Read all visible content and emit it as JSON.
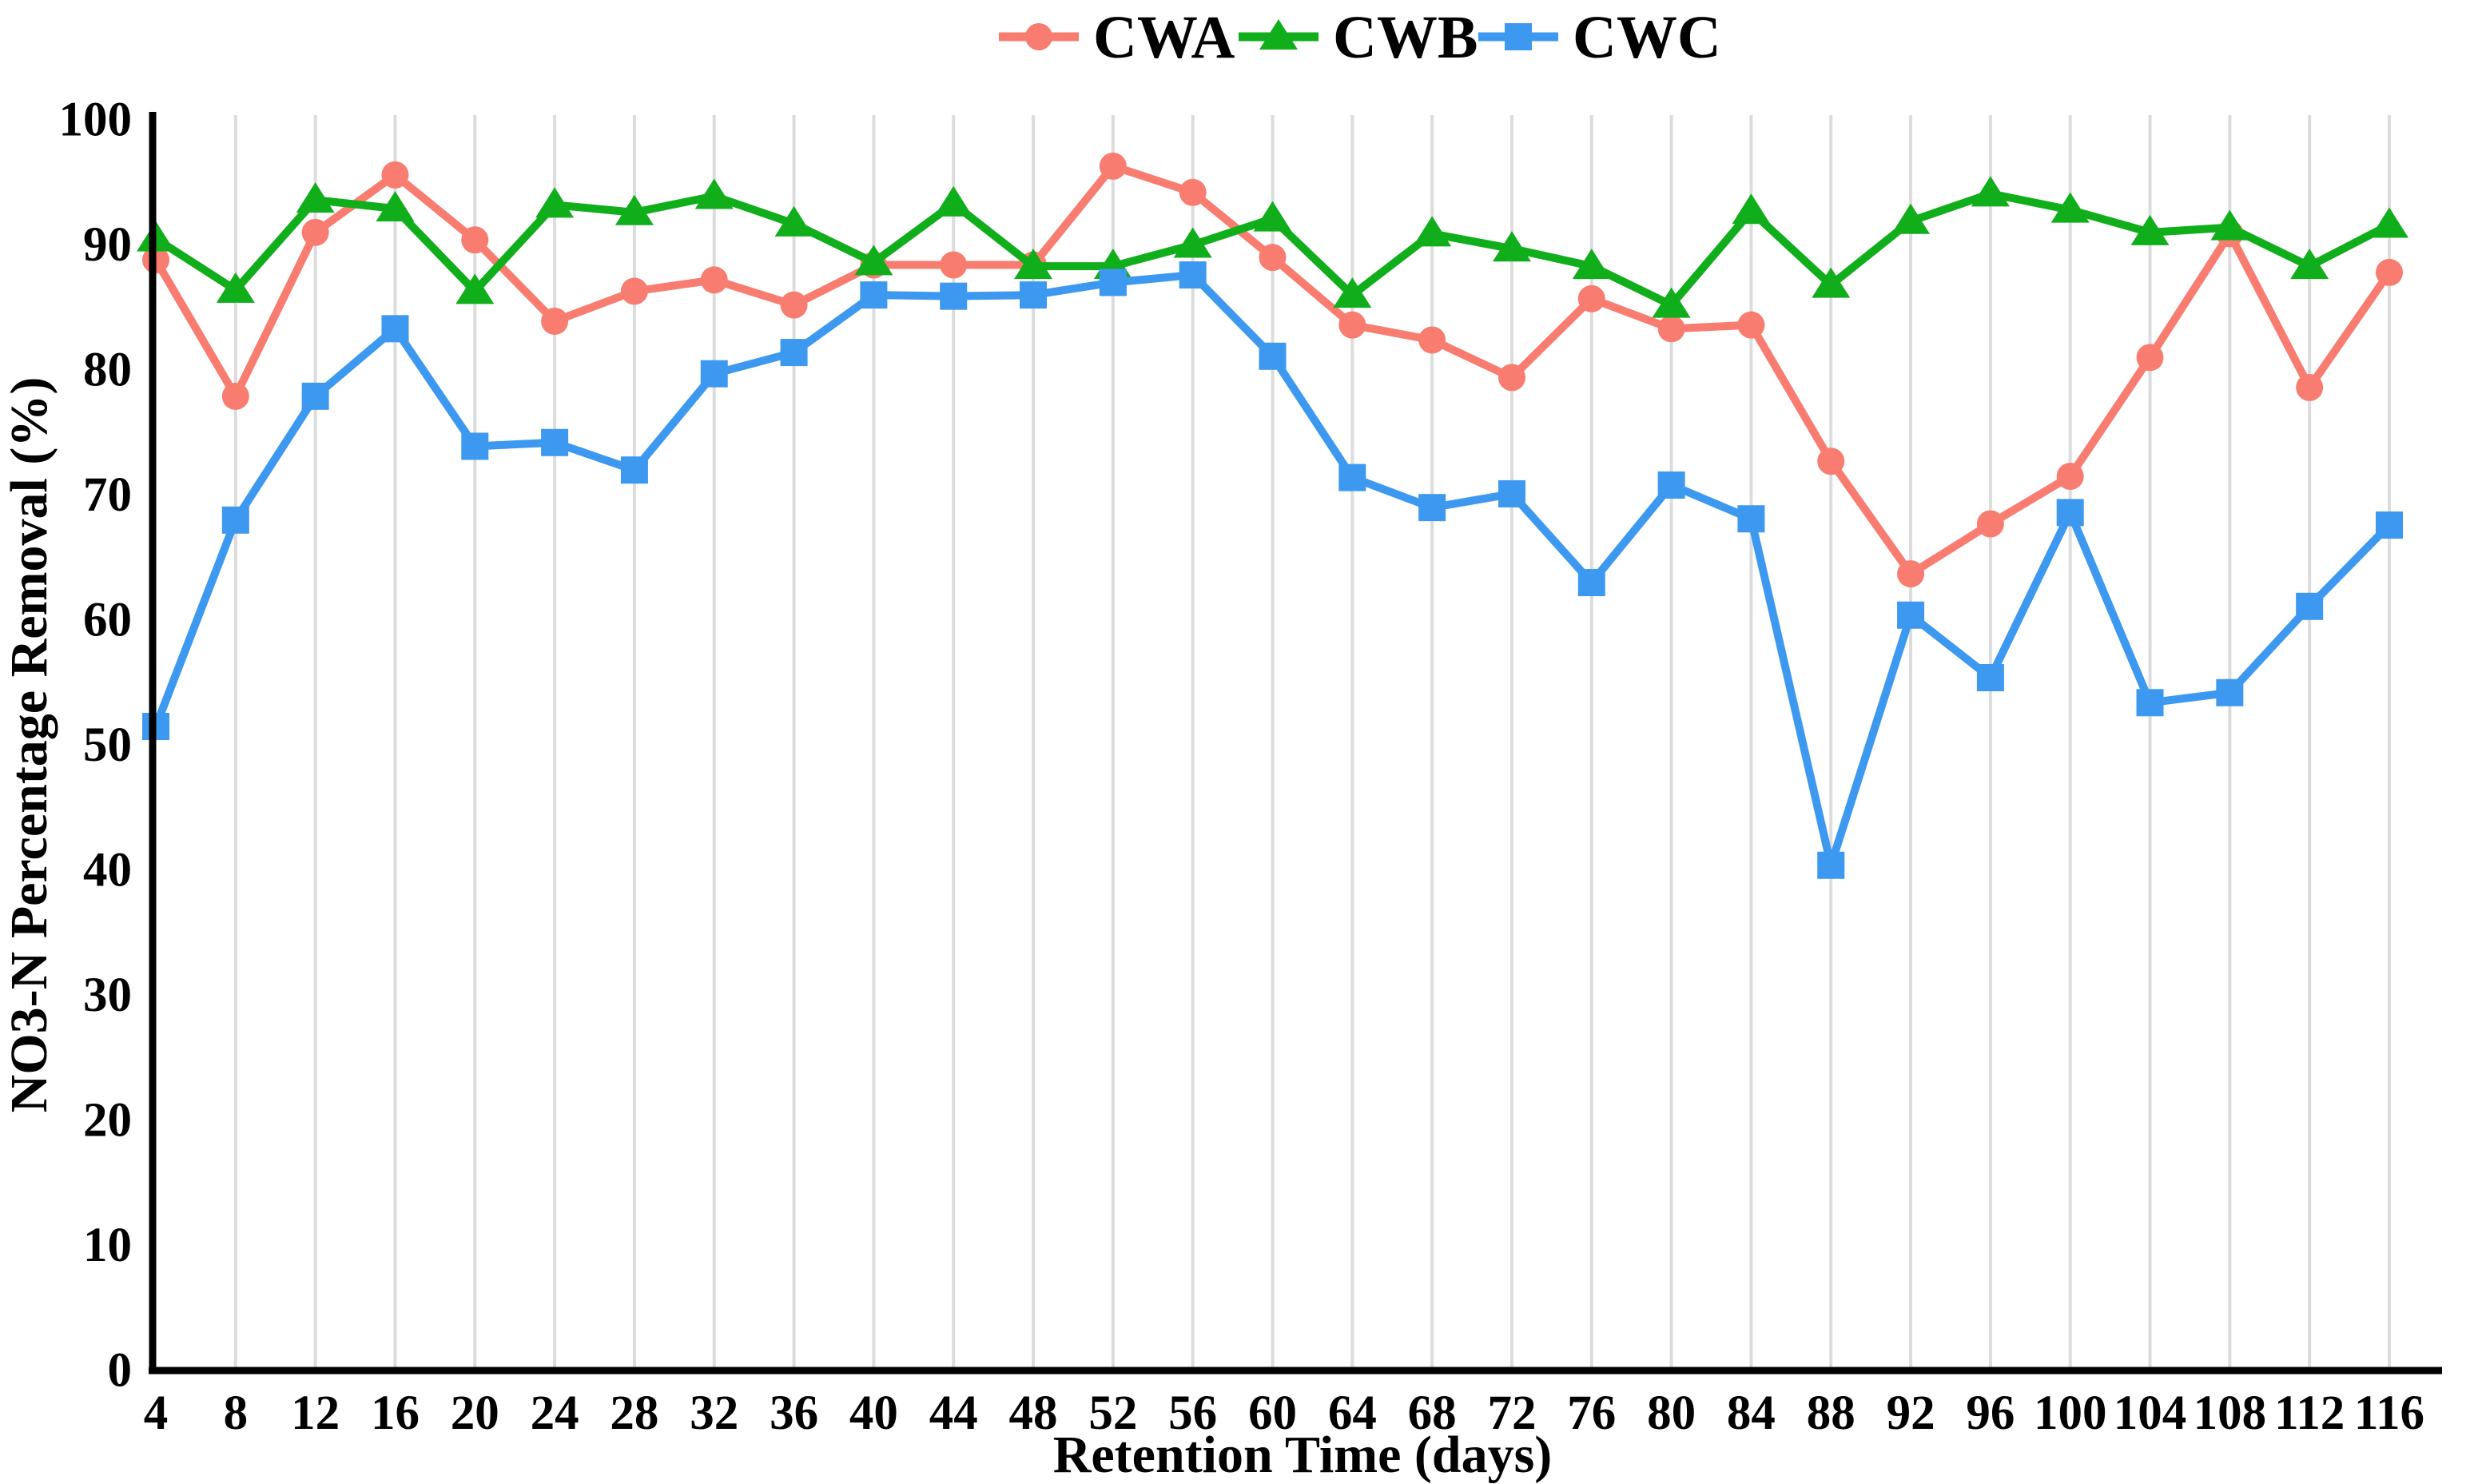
{
  "chart_data": {
    "type": "line",
    "title": "",
    "xlabel": "Retention Time (days)",
    "ylabel": "NO3-N Percentage Removal (%)",
    "x": [
      4,
      8,
      12,
      16,
      20,
      24,
      28,
      32,
      36,
      40,
      44,
      48,
      52,
      56,
      60,
      64,
      68,
      72,
      76,
      80,
      84,
      88,
      92,
      96,
      100,
      104,
      108,
      112,
      116
    ],
    "x_tick_labels": [
      "4",
      "8",
      "12",
      "16",
      "20",
      "24",
      "28",
      "32",
      "36",
      "40",
      "44",
      "48",
      "52",
      "56",
      "60",
      "64",
      "68",
      "72",
      "76",
      "80",
      "84",
      "88",
      "92",
      "96",
      "100",
      "104",
      "108",
      "112",
      "116"
    ],
    "y_ticks": [
      0,
      10,
      20,
      30,
      40,
      50,
      60,
      70,
      80,
      90,
      100
    ],
    "y_tick_labels": [
      "0",
      "10",
      "20",
      "30",
      "40",
      "50",
      "60",
      "70",
      "80",
      "90",
      "100"
    ],
    "xlim": [
      4,
      116
    ],
    "ylim": [
      0,
      100
    ],
    "grid": "vertical-only",
    "gridline_color": "#DCDCDC",
    "axis_color": "#000000",
    "background_color": "#FFFFFF",
    "legend_position": "top-center",
    "series": [
      {
        "name": "CWA",
        "marker": "circle",
        "color": "#F97C70",
        "values": [
          88.8,
          77.9,
          91.0,
          95.6,
          90.4,
          83.9,
          86.3,
          87.2,
          85.2,
          88.4,
          88.4,
          88.4,
          96.3,
          94.2,
          89.0,
          83.6,
          82.4,
          79.4,
          85.7,
          83.3,
          83.6,
          72.7,
          63.7,
          67.7,
          71.5,
          81.0,
          90.9,
          78.6,
          87.8
        ]
      },
      {
        "name": "CWB",
        "marker": "triangle",
        "color": "#10AE1B",
        "values": [
          90.5,
          86.4,
          93.6,
          92.9,
          86.3,
          93.2,
          92.6,
          93.9,
          91.7,
          88.6,
          93.3,
          88.3,
          88.3,
          90.0,
          92.1,
          86.0,
          90.9,
          89.7,
          88.3,
          85.2,
          92.7,
          86.8,
          91.9,
          94.1,
          92.8,
          91.0,
          91.4,
          88.3,
          91.6
        ]
      },
      {
        "name": "CWC",
        "marker": "square",
        "color": "#3D98F0",
        "values": [
          51.5,
          68.0,
          77.9,
          83.3,
          73.9,
          74.2,
          72.0,
          79.7,
          81.4,
          86.0,
          85.9,
          86.0,
          87.0,
          87.6,
          81.1,
          71.4,
          69.0,
          70.1,
          63.0,
          70.8,
          68.1,
          40.4,
          60.4,
          55.4,
          68.6,
          53.4,
          54.2,
          61.1,
          67.6
        ]
      }
    ]
  }
}
